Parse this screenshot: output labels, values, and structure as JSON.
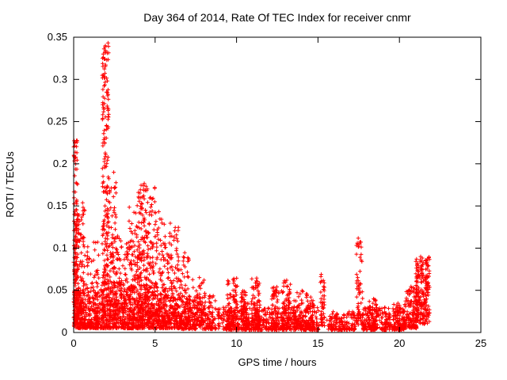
{
  "page": {
    "background": "#ffffff",
    "text_color": "#000000"
  },
  "chart_data": {
    "type": "scatter",
    "title": "Day 364 of 2014, Rate Of TEC Index for receiver cnmr",
    "xlabel": "GPS time / hours",
    "ylabel": "ROTI / TECUs",
    "xlim": [
      0,
      25
    ],
    "ylim": [
      0,
      0.35
    ],
    "xticks": [
      "0",
      "5",
      "10",
      "15",
      "20",
      "25"
    ],
    "yticks": [
      "0",
      "0.05",
      "0.1",
      "0.15",
      "0.2",
      "0.25",
      "0.3",
      "0.35"
    ],
    "grid": false,
    "legend": "none",
    "marker": {
      "shape": "plus",
      "color": "#ff0000",
      "size": 5
    },
    "series_name": "ROTI",
    "data_extent_hours": [
      0,
      21.9
    ],
    "notable_peaks": [
      {
        "hour": 0.05,
        "roti": 0.23
      },
      {
        "hour": 1.9,
        "roti": 0.34
      },
      {
        "hour": 2.0,
        "roti": 0.3
      },
      {
        "hour": 4.2,
        "roti": 0.18
      },
      {
        "hour": 4.6,
        "roti": 0.175
      },
      {
        "hour": 5.0,
        "roti": 0.145
      },
      {
        "hour": 6.2,
        "roti": 0.13
      },
      {
        "hour": 15.2,
        "roti": 0.07
      },
      {
        "hour": 17.5,
        "roti": 0.11
      },
      {
        "hour": 21.5,
        "roti": 0.09
      }
    ],
    "point_generator": {
      "seed": 20141364,
      "clusters": [
        {
          "x0": 0.0,
          "x1": 0.25,
          "n": 120,
          "y0": 0.015,
          "y1": 0.23,
          "bias": 1.15
        },
        {
          "x0": 0.05,
          "x1": 0.7,
          "n": 150,
          "y0": 0.01,
          "y1": 0.155,
          "bias": 1.7
        },
        {
          "x0": 0.0,
          "x1": 1.6,
          "n": 260,
          "y0": 0.005,
          "y1": 0.05,
          "bias": 1.9
        },
        {
          "x0": 0.7,
          "x1": 1.6,
          "n": 90,
          "y0": 0.01,
          "y1": 0.11,
          "bias": 2.0
        },
        {
          "x0": 1.75,
          "x1": 2.15,
          "n": 190,
          "y0": 0.02,
          "y1": 0.345,
          "bias": 1.1
        },
        {
          "x0": 2.1,
          "x1": 2.6,
          "n": 110,
          "y0": 0.015,
          "y1": 0.19,
          "bias": 1.5
        },
        {
          "x0": 1.6,
          "x1": 3.6,
          "n": 320,
          "y0": 0.005,
          "y1": 0.06,
          "bias": 2.0
        },
        {
          "x0": 2.6,
          "x1": 3.4,
          "n": 110,
          "y0": 0.01,
          "y1": 0.115,
          "bias": 1.7
        },
        {
          "x0": 3.4,
          "x1": 3.9,
          "n": 110,
          "y0": 0.01,
          "y1": 0.155,
          "bias": 1.5
        },
        {
          "x0": 3.9,
          "x1": 4.45,
          "n": 140,
          "y0": 0.015,
          "y1": 0.18,
          "bias": 1.3
        },
        {
          "x0": 4.45,
          "x1": 5.0,
          "n": 120,
          "y0": 0.01,
          "y1": 0.175,
          "bias": 1.5
        },
        {
          "x0": 3.6,
          "x1": 6.6,
          "n": 420,
          "y0": 0.005,
          "y1": 0.055,
          "bias": 2.0
        },
        {
          "x0": 5.0,
          "x1": 5.55,
          "n": 90,
          "y0": 0.01,
          "y1": 0.145,
          "bias": 1.6
        },
        {
          "x0": 5.55,
          "x1": 6.45,
          "n": 130,
          "y0": 0.01,
          "y1": 0.13,
          "bias": 1.6
        },
        {
          "x0": 6.45,
          "x1": 7.1,
          "n": 80,
          "y0": 0.008,
          "y1": 0.095,
          "bias": 1.7
        },
        {
          "x0": 6.6,
          "x1": 8.75,
          "n": 260,
          "y0": 0.004,
          "y1": 0.045,
          "bias": 1.9
        },
        {
          "x0": 7.3,
          "x1": 8.1,
          "n": 70,
          "y0": 0.008,
          "y1": 0.068,
          "bias": 1.7
        },
        {
          "x0": 8.85,
          "x1": 9.4,
          "n": 40,
          "y0": 0.004,
          "y1": 0.03,
          "bias": 1.8
        },
        {
          "x0": 9.4,
          "x1": 10.05,
          "n": 90,
          "y0": 0.005,
          "y1": 0.066,
          "bias": 1.6
        },
        {
          "x0": 9.4,
          "x1": 15.05,
          "n": 520,
          "y0": 0.003,
          "y1": 0.03,
          "bias": 2.0
        },
        {
          "x0": 10.25,
          "x1": 10.75,
          "n": 60,
          "y0": 0.005,
          "y1": 0.05,
          "bias": 1.6
        },
        {
          "x0": 10.9,
          "x1": 11.45,
          "n": 80,
          "y0": 0.005,
          "y1": 0.065,
          "bias": 1.6
        },
        {
          "x0": 12.15,
          "x1": 12.6,
          "n": 60,
          "y0": 0.005,
          "y1": 0.055,
          "bias": 1.6
        },
        {
          "x0": 12.75,
          "x1": 13.35,
          "n": 80,
          "y0": 0.005,
          "y1": 0.062,
          "bias": 1.6
        },
        {
          "x0": 13.5,
          "x1": 14.1,
          "n": 60,
          "y0": 0.005,
          "y1": 0.05,
          "bias": 1.6
        },
        {
          "x0": 14.2,
          "x1": 14.8,
          "n": 55,
          "y0": 0.005,
          "y1": 0.046,
          "bias": 1.6
        },
        {
          "x0": 15.15,
          "x1": 15.4,
          "n": 45,
          "y0": 0.008,
          "y1": 0.07,
          "bias": 1.3
        },
        {
          "x0": 15.5,
          "x1": 17.3,
          "n": 150,
          "y0": 0.003,
          "y1": 0.025,
          "bias": 1.9
        },
        {
          "x0": 17.35,
          "x1": 17.75,
          "n": 70,
          "y0": 0.008,
          "y1": 0.112,
          "bias": 1.6
        },
        {
          "x0": 17.75,
          "x1": 20.3,
          "n": 260,
          "y0": 0.003,
          "y1": 0.03,
          "bias": 1.9
        },
        {
          "x0": 18.1,
          "x1": 18.6,
          "n": 45,
          "y0": 0.005,
          "y1": 0.042,
          "bias": 1.7
        },
        {
          "x0": 19.6,
          "x1": 20.3,
          "n": 60,
          "y0": 0.004,
          "y1": 0.035,
          "bias": 1.8
        },
        {
          "x0": 20.3,
          "x1": 21.05,
          "n": 130,
          "y0": 0.005,
          "y1": 0.055,
          "bias": 1.6
        },
        {
          "x0": 21.0,
          "x1": 21.85,
          "n": 230,
          "y0": 0.01,
          "y1": 0.09,
          "bias": 1.25
        }
      ]
    }
  }
}
